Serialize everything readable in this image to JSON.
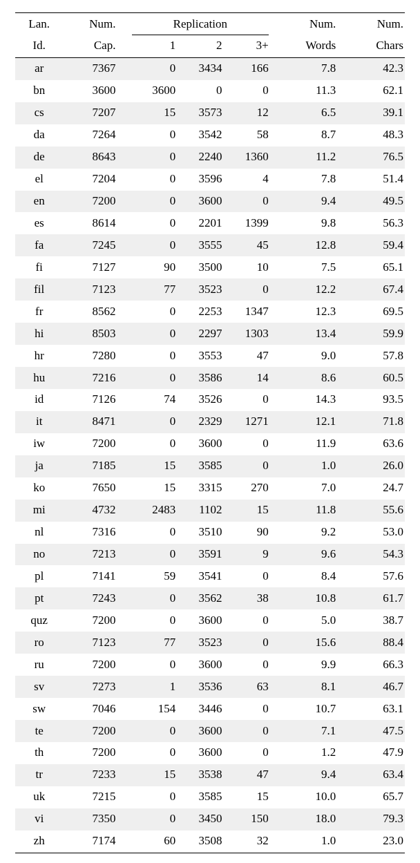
{
  "colors": {
    "background": "#ffffff",
    "stripe": "#efefef",
    "rule": "#000000",
    "text": "#000000"
  },
  "typography": {
    "font_family": "Times New Roman",
    "body_fontsize_pt": 12
  },
  "table": {
    "type": "table",
    "header": {
      "lan_top": "Lan.",
      "lan_bot": "Id.",
      "cap_top": "Num.",
      "cap_bot": "Cap.",
      "rep_span": "Replication",
      "rep1": "1",
      "rep2": "2",
      "rep3": "3+",
      "words_top": "Num.",
      "words_bot": "Words",
      "chars_top": "Num.",
      "chars_bot": "Chars"
    },
    "columns": [
      "lan",
      "cap",
      "rep1",
      "rep2",
      "rep3",
      "words",
      "chars"
    ],
    "rows": [
      {
        "lan": "ar",
        "cap": "7367",
        "rep1": "0",
        "rep2": "3434",
        "rep3": "166",
        "words": "7.8",
        "chars": "42.3"
      },
      {
        "lan": "bn",
        "cap": "3600",
        "rep1": "3600",
        "rep2": "0",
        "rep3": "0",
        "words": "11.3",
        "chars": "62.1"
      },
      {
        "lan": "cs",
        "cap": "7207",
        "rep1": "15",
        "rep2": "3573",
        "rep3": "12",
        "words": "6.5",
        "chars": "39.1"
      },
      {
        "lan": "da",
        "cap": "7264",
        "rep1": "0",
        "rep2": "3542",
        "rep3": "58",
        "words": "8.7",
        "chars": "48.3"
      },
      {
        "lan": "de",
        "cap": "8643",
        "rep1": "0",
        "rep2": "2240",
        "rep3": "1360",
        "words": "11.2",
        "chars": "76.5"
      },
      {
        "lan": "el",
        "cap": "7204",
        "rep1": "0",
        "rep2": "3596",
        "rep3": "4",
        "words": "7.8",
        "chars": "51.4"
      },
      {
        "lan": "en",
        "cap": "7200",
        "rep1": "0",
        "rep2": "3600",
        "rep3": "0",
        "words": "9.4",
        "chars": "49.5"
      },
      {
        "lan": "es",
        "cap": "8614",
        "rep1": "0",
        "rep2": "2201",
        "rep3": "1399",
        "words": "9.8",
        "chars": "56.3"
      },
      {
        "lan": "fa",
        "cap": "7245",
        "rep1": "0",
        "rep2": "3555",
        "rep3": "45",
        "words": "12.8",
        "chars": "59.4"
      },
      {
        "lan": "fi",
        "cap": "7127",
        "rep1": "90",
        "rep2": "3500",
        "rep3": "10",
        "words": "7.5",
        "chars": "65.1"
      },
      {
        "lan": "fil",
        "cap": "7123",
        "rep1": "77",
        "rep2": "3523",
        "rep3": "0",
        "words": "12.2",
        "chars": "67.4"
      },
      {
        "lan": "fr",
        "cap": "8562",
        "rep1": "0",
        "rep2": "2253",
        "rep3": "1347",
        "words": "12.3",
        "chars": "69.5"
      },
      {
        "lan": "hi",
        "cap": "8503",
        "rep1": "0",
        "rep2": "2297",
        "rep3": "1303",
        "words": "13.4",
        "chars": "59.9"
      },
      {
        "lan": "hr",
        "cap": "7280",
        "rep1": "0",
        "rep2": "3553",
        "rep3": "47",
        "words": "9.0",
        "chars": "57.8"
      },
      {
        "lan": "hu",
        "cap": "7216",
        "rep1": "0",
        "rep2": "3586",
        "rep3": "14",
        "words": "8.6",
        "chars": "60.5"
      },
      {
        "lan": "id",
        "cap": "7126",
        "rep1": "74",
        "rep2": "3526",
        "rep3": "0",
        "words": "14.3",
        "chars": "93.5"
      },
      {
        "lan": "it",
        "cap": "8471",
        "rep1": "0",
        "rep2": "2329",
        "rep3": "1271",
        "words": "12.1",
        "chars": "71.8"
      },
      {
        "lan": "iw",
        "cap": "7200",
        "rep1": "0",
        "rep2": "3600",
        "rep3": "0",
        "words": "11.9",
        "chars": "63.6"
      },
      {
        "lan": "ja",
        "cap": "7185",
        "rep1": "15",
        "rep2": "3585",
        "rep3": "0",
        "words": "1.0",
        "chars": "26.0"
      },
      {
        "lan": "ko",
        "cap": "7650",
        "rep1": "15",
        "rep2": "3315",
        "rep3": "270",
        "words": "7.0",
        "chars": "24.7"
      },
      {
        "lan": "mi",
        "cap": "4732",
        "rep1": "2483",
        "rep2": "1102",
        "rep3": "15",
        "words": "11.8",
        "chars": "55.6"
      },
      {
        "lan": "nl",
        "cap": "7316",
        "rep1": "0",
        "rep2": "3510",
        "rep3": "90",
        "words": "9.2",
        "chars": "53.0"
      },
      {
        "lan": "no",
        "cap": "7213",
        "rep1": "0",
        "rep2": "3591",
        "rep3": "9",
        "words": "9.6",
        "chars": "54.3"
      },
      {
        "lan": "pl",
        "cap": "7141",
        "rep1": "59",
        "rep2": "3541",
        "rep3": "0",
        "words": "8.4",
        "chars": "57.6"
      },
      {
        "lan": "pt",
        "cap": "7243",
        "rep1": "0",
        "rep2": "3562",
        "rep3": "38",
        "words": "10.8",
        "chars": "61.7"
      },
      {
        "lan": "quz",
        "cap": "7200",
        "rep1": "0",
        "rep2": "3600",
        "rep3": "0",
        "words": "5.0",
        "chars": "38.7"
      },
      {
        "lan": "ro",
        "cap": "7123",
        "rep1": "77",
        "rep2": "3523",
        "rep3": "0",
        "words": "15.6",
        "chars": "88.4"
      },
      {
        "lan": "ru",
        "cap": "7200",
        "rep1": "0",
        "rep2": "3600",
        "rep3": "0",
        "words": "9.9",
        "chars": "66.3"
      },
      {
        "lan": "sv",
        "cap": "7273",
        "rep1": "1",
        "rep2": "3536",
        "rep3": "63",
        "words": "8.1",
        "chars": "46.7"
      },
      {
        "lan": "sw",
        "cap": "7046",
        "rep1": "154",
        "rep2": "3446",
        "rep3": "0",
        "words": "10.7",
        "chars": "63.1"
      },
      {
        "lan": "te",
        "cap": "7200",
        "rep1": "0",
        "rep2": "3600",
        "rep3": "0",
        "words": "7.1",
        "chars": "47.5"
      },
      {
        "lan": "th",
        "cap": "7200",
        "rep1": "0",
        "rep2": "3600",
        "rep3": "0",
        "words": "1.2",
        "chars": "47.9"
      },
      {
        "lan": "tr",
        "cap": "7233",
        "rep1": "15",
        "rep2": "3538",
        "rep3": "47",
        "words": "9.4",
        "chars": "63.4"
      },
      {
        "lan": "uk",
        "cap": "7215",
        "rep1": "0",
        "rep2": "3585",
        "rep3": "15",
        "words": "10.0",
        "chars": "65.7"
      },
      {
        "lan": "vi",
        "cap": "7350",
        "rep1": "0",
        "rep2": "3450",
        "rep3": "150",
        "words": "18.0",
        "chars": "79.3"
      },
      {
        "lan": "zh",
        "cap": "7174",
        "rep1": "60",
        "rep2": "3508",
        "rep3": "32",
        "words": "1.0",
        "chars": "23.0"
      }
    ]
  }
}
